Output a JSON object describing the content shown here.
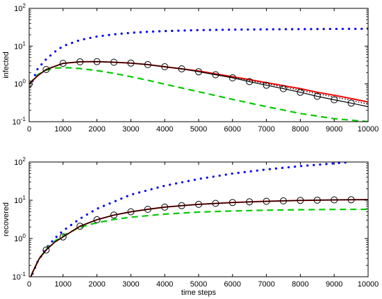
{
  "chart_data": [
    {
      "type": "line",
      "title": "",
      "xlabel": "",
      "ylabel": "infected",
      "xlim": [
        0,
        10000
      ],
      "ylim": [
        0.1,
        100
      ],
      "yscale": "log",
      "grid": false,
      "x_ticks": [
        "0",
        "1000",
        "2000",
        "3000",
        "4000",
        "5000",
        "6000",
        "7000",
        "8000",
        "9000",
        "10000"
      ],
      "y_ticks": [
        {
          "value": 0.1,
          "base": "10",
          "exp": "-1"
        },
        {
          "value": 1,
          "base": "10",
          "exp": "0"
        },
        {
          "value": 10,
          "base": "10",
          "exp": "1"
        },
        {
          "value": 100,
          "base": "10",
          "exp": "2"
        }
      ],
      "series": [
        {
          "color": "#0000ff",
          "style": "dotted-sparse",
          "x": [
            100,
            250,
            500,
            750,
            1000,
            1500,
            2000,
            2500,
            3000,
            3500,
            4000,
            5000,
            6000,
            7000,
            8000,
            9000,
            10000
          ],
          "y": [
            1.2,
            2.5,
            4.5,
            7,
            10,
            14.5,
            18,
            20.5,
            22.5,
            24,
            25,
            26.5,
            27.3,
            27.8,
            28.2,
            28.5,
            28.8
          ]
        },
        {
          "color": "#00cc00",
          "style": "dashed",
          "x": [
            0,
            250,
            500,
            750,
            1000,
            1250,
            1500,
            2000,
            2500,
            3000,
            3500,
            4000,
            5000,
            6000,
            7000,
            8000,
            9000,
            10000
          ],
          "y": [
            1,
            1.75,
            2.3,
            2.6,
            2.7,
            2.65,
            2.55,
            2.25,
            1.9,
            1.55,
            1.25,
            0.98,
            0.62,
            0.39,
            0.25,
            0.165,
            0.12,
            0.1
          ]
        },
        {
          "color": "#ff0000",
          "style": "solid",
          "x": [
            0,
            250,
            500,
            1000,
            1500,
            2000,
            2500,
            3000,
            3500,
            4000,
            4500,
            5000,
            5500,
            6000,
            6500,
            7000,
            7500,
            8000,
            8500,
            9000,
            9500,
            10000
          ],
          "y": [
            1,
            1.65,
            2.4,
            3.5,
            3.85,
            3.9,
            3.75,
            3.55,
            3.25,
            2.85,
            2.5,
            2.2,
            1.85,
            1.55,
            1.3,
            1.08,
            0.9,
            0.75,
            0.6,
            0.5,
            0.41,
            0.33
          ]
        },
        {
          "color": "#000000",
          "style": "dotted",
          "x": [
            0,
            250,
            500,
            1000,
            1500,
            2000,
            2500,
            3000,
            3500,
            4000,
            4500,
            5000,
            5500,
            6000,
            6500,
            7000,
            7500,
            8000,
            8500,
            9000,
            9500,
            10000
          ],
          "y": [
            1,
            1.65,
            2.4,
            3.5,
            3.85,
            3.9,
            3.75,
            3.55,
            3.25,
            2.85,
            2.5,
            2.15,
            1.8,
            1.5,
            1.23,
            1.02,
            0.83,
            0.68,
            0.55,
            0.45,
            0.37,
            0.29
          ]
        },
        {
          "color": "#000000",
          "style": "solid",
          "x": [
            0,
            250,
            500,
            1000,
            1500,
            2000,
            2500,
            3000,
            3500,
            4000,
            4500,
            5000,
            5500,
            6000,
            6500,
            7000,
            7500,
            8000,
            8500,
            9000,
            9500,
            10000
          ],
          "y": [
            1,
            1.65,
            2.4,
            3.5,
            3.85,
            3.9,
            3.75,
            3.55,
            3.25,
            2.85,
            2.5,
            2.1,
            1.75,
            1.45,
            1.15,
            0.92,
            0.75,
            0.6,
            0.47,
            0.38,
            0.31,
            0.25
          ]
        },
        {
          "color": "#000000",
          "style": "markers-circle",
          "x": [
            0,
            500,
            1000,
            1500,
            2000,
            2500,
            3000,
            3500,
            4000,
            4500,
            5000,
            5500,
            6000,
            6500,
            7000,
            7500,
            8000,
            8500,
            9000,
            9500
          ],
          "y": [
            1,
            2.4,
            3.5,
            3.85,
            3.9,
            3.75,
            3.55,
            3.25,
            2.85,
            2.5,
            2.1,
            1.75,
            1.45,
            1.15,
            0.92,
            0.75,
            0.6,
            0.47,
            0.38,
            0.31
          ]
        }
      ]
    },
    {
      "type": "line",
      "title": "",
      "xlabel": "time steps",
      "ylabel": "recovered",
      "xlim": [
        0,
        10000
      ],
      "ylim": [
        0.1,
        100
      ],
      "yscale": "log",
      "grid": false,
      "x_ticks": [
        "0",
        "1000",
        "2000",
        "3000",
        "4000",
        "5000",
        "6000",
        "7000",
        "8000",
        "9000",
        "10000"
      ],
      "y_ticks": [
        {
          "value": 0.1,
          "base": "10",
          "exp": "-1"
        },
        {
          "value": 1,
          "base": "10",
          "exp": "0"
        },
        {
          "value": 10,
          "base": "10",
          "exp": "1"
        },
        {
          "value": 100,
          "base": "10",
          "exp": "2"
        }
      ],
      "series": [
        {
          "color": "#0000ff",
          "style": "dotted-sparse",
          "x": [
            100,
            250,
            500,
            750,
            1000,
            1500,
            2000,
            3000,
            4000,
            5000,
            6000,
            7000,
            8000,
            9000,
            9500
          ],
          "y": [
            0.12,
            0.25,
            0.55,
            1,
            1.6,
            3.3,
            6,
            14,
            24,
            36,
            50,
            64,
            78,
            92,
            100
          ]
        },
        {
          "color": "#00cc00",
          "style": "dashed",
          "x": [
            50,
            100,
            200,
            300,
            500,
            750,
            1000,
            1500,
            2000,
            2500,
            3000,
            4000,
            5000,
            6000,
            7000,
            8000,
            9000,
            10000
          ],
          "y": [
            0.1,
            0.13,
            0.2,
            0.3,
            0.52,
            0.85,
            1.2,
            1.95,
            2.6,
            3.15,
            3.6,
            4.35,
            4.9,
            5.25,
            5.5,
            5.65,
            5.75,
            5.8
          ]
        },
        {
          "color": "#ff0000",
          "style": "solid",
          "x": [
            50,
            100,
            200,
            300,
            500,
            750,
            1000,
            1500,
            2000,
            2500,
            3000,
            3500,
            4000,
            4500,
            5000,
            6000,
            7000,
            8000,
            9000,
            10000
          ],
          "y": [
            0.1,
            0.13,
            0.2,
            0.3,
            0.5,
            0.8,
            1.1,
            2.1,
            3.1,
            4.1,
            5,
            5.8,
            6.6,
            7.2,
            7.8,
            8.7,
            9.4,
            9.9,
            10.2,
            10.4
          ]
        },
        {
          "color": "#000000",
          "style": "dotted",
          "x": [
            50,
            100,
            200,
            300,
            500,
            750,
            1000,
            1500,
            2000,
            2500,
            3000,
            3500,
            4000,
            4500,
            5000,
            6000,
            7000,
            8000,
            9000,
            10000
          ],
          "y": [
            0.1,
            0.13,
            0.2,
            0.3,
            0.5,
            0.8,
            1.1,
            2.1,
            3.1,
            4.1,
            5,
            5.8,
            6.6,
            7.2,
            7.8,
            8.7,
            9.4,
            9.9,
            10.2,
            10.4
          ]
        },
        {
          "color": "#000000",
          "style": "solid",
          "x": [
            50,
            100,
            200,
            300,
            500,
            750,
            1000,
            1500,
            2000,
            2500,
            3000,
            3500,
            4000,
            4500,
            5000,
            6000,
            7000,
            8000,
            9000,
            10000
          ],
          "y": [
            0.1,
            0.13,
            0.2,
            0.3,
            0.5,
            0.8,
            1.1,
            2.1,
            3.1,
            4.1,
            5,
            5.8,
            6.6,
            7.2,
            7.8,
            8.7,
            9.4,
            9.9,
            10.2,
            10.4
          ]
        },
        {
          "color": "#000000",
          "style": "markers-circle",
          "x": [
            500,
            1000,
            1500,
            2000,
            2500,
            3000,
            3500,
            4000,
            4500,
            5000,
            5500,
            6000,
            6500,
            7000,
            7500,
            8000,
            8500,
            9000,
            9500
          ],
          "y": [
            0.5,
            1.1,
            2.1,
            3.1,
            4.1,
            5,
            5.8,
            6.6,
            7.2,
            7.8,
            8.3,
            8.7,
            9.1,
            9.4,
            9.65,
            9.9,
            10.05,
            10.2,
            10.3
          ]
        }
      ]
    }
  ]
}
